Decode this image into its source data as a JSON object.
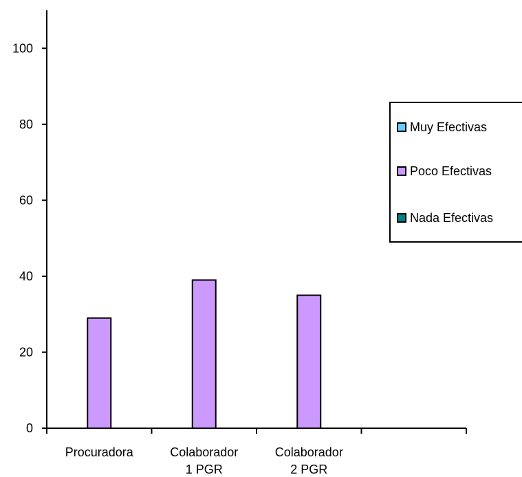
{
  "chart_data": {
    "type": "bar",
    "categories": [
      [
        "Procuradora"
      ],
      [
        "Colaborador",
        "1 PGR"
      ],
      [
        "Colaborador",
        "2 PGR"
      ],
      [
        ""
      ]
    ],
    "series": [
      {
        "name": "Muy Efectivas",
        "color": "#66CCFF",
        "values": [
          0,
          0,
          0,
          0
        ]
      },
      {
        "name": "Poco Efectivas",
        "color": "#CC99FF",
        "values": [
          29,
          39,
          35,
          0
        ]
      },
      {
        "name": "Nada Efectivas",
        "color": "#008080",
        "values": [
          0,
          0,
          0,
          0
        ]
      }
    ],
    "yticks": [
      0,
      20,
      40,
      60,
      80,
      100
    ],
    "ylim": [
      0,
      110
    ],
    "grid": false,
    "legend_position": "right"
  }
}
